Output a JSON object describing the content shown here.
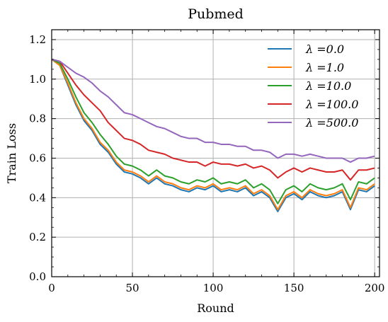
{
  "chart_data": {
    "type": "line",
    "title": "Pubmed",
    "xlabel": "Round",
    "ylabel": "Train Loss",
    "xlim": [
      0,
      203
    ],
    "ylim": [
      0,
      1.25
    ],
    "xticks": [
      0,
      50,
      100,
      150,
      200
    ],
    "xtick_labels": [
      "0",
      "50",
      "100",
      "150",
      "200"
    ],
    "yticks": [
      0.0,
      0.2,
      0.4,
      0.6,
      0.8,
      1.0,
      1.2
    ],
    "ytick_labels": [
      "0.0",
      "0.2",
      "0.4",
      "0.6",
      "0.8",
      "1.0",
      "1.2"
    ],
    "grid": true,
    "legend_position": "top-right",
    "x": [
      0,
      5,
      10,
      15,
      20,
      25,
      30,
      35,
      40,
      45,
      50,
      55,
      60,
      65,
      70,
      75,
      80,
      85,
      90,
      95,
      100,
      105,
      110,
      115,
      120,
      125,
      130,
      135,
      140,
      145,
      150,
      155,
      160,
      165,
      170,
      175,
      180,
      185,
      190,
      195,
      200
    ],
    "series": [
      {
        "name": "λ =0.0",
        "color": "#1f77b4",
        "values": [
          1.1,
          1.07,
          0.97,
          0.87,
          0.79,
          0.74,
          0.67,
          0.63,
          0.57,
          0.53,
          0.52,
          0.5,
          0.47,
          0.5,
          0.47,
          0.46,
          0.44,
          0.43,
          0.45,
          0.44,
          0.46,
          0.43,
          0.44,
          0.43,
          0.45,
          0.41,
          0.43,
          0.4,
          0.33,
          0.4,
          0.42,
          0.39,
          0.43,
          0.41,
          0.4,
          0.41,
          0.43,
          0.34,
          0.44,
          0.43,
          0.46
        ]
      },
      {
        "name": "λ =1.0",
        "color": "#ff7f0e",
        "values": [
          1.1,
          1.07,
          0.98,
          0.88,
          0.8,
          0.75,
          0.68,
          0.64,
          0.58,
          0.54,
          0.53,
          0.51,
          0.48,
          0.51,
          0.48,
          0.47,
          0.45,
          0.44,
          0.46,
          0.45,
          0.47,
          0.44,
          0.45,
          0.44,
          0.46,
          0.42,
          0.44,
          0.41,
          0.34,
          0.41,
          0.43,
          0.4,
          0.44,
          0.42,
          0.41,
          0.42,
          0.44,
          0.35,
          0.45,
          0.44,
          0.47
        ]
      },
      {
        "name": "λ =10.0",
        "color": "#2ca02c",
        "values": [
          1.1,
          1.08,
          1.0,
          0.91,
          0.83,
          0.78,
          0.72,
          0.67,
          0.61,
          0.57,
          0.56,
          0.54,
          0.51,
          0.54,
          0.51,
          0.5,
          0.48,
          0.47,
          0.49,
          0.48,
          0.5,
          0.47,
          0.48,
          0.47,
          0.49,
          0.45,
          0.47,
          0.44,
          0.37,
          0.44,
          0.46,
          0.43,
          0.47,
          0.45,
          0.44,
          0.45,
          0.47,
          0.39,
          0.48,
          0.47,
          0.5
        ]
      },
      {
        "name": "λ =100.0",
        "color": "#d62728",
        "values": [
          1.1,
          1.09,
          1.03,
          0.97,
          0.92,
          0.88,
          0.84,
          0.78,
          0.74,
          0.7,
          0.69,
          0.67,
          0.64,
          0.63,
          0.62,
          0.6,
          0.59,
          0.58,
          0.58,
          0.56,
          0.58,
          0.57,
          0.57,
          0.56,
          0.57,
          0.55,
          0.56,
          0.54,
          0.5,
          0.53,
          0.55,
          0.53,
          0.55,
          0.54,
          0.53,
          0.53,
          0.54,
          0.49,
          0.54,
          0.54,
          0.55
        ]
      },
      {
        "name": "λ =500.0",
        "color": "#9467bd",
        "values": [
          1.1,
          1.09,
          1.06,
          1.03,
          1.01,
          0.98,
          0.94,
          0.91,
          0.87,
          0.83,
          0.82,
          0.8,
          0.78,
          0.76,
          0.75,
          0.73,
          0.71,
          0.7,
          0.7,
          0.68,
          0.68,
          0.67,
          0.67,
          0.66,
          0.66,
          0.64,
          0.64,
          0.63,
          0.6,
          0.62,
          0.62,
          0.61,
          0.62,
          0.61,
          0.6,
          0.6,
          0.6,
          0.58,
          0.6,
          0.6,
          0.61
        ]
      }
    ]
  }
}
